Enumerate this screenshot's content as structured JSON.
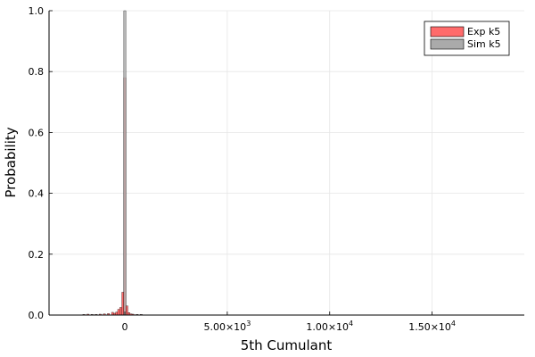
{
  "chart_data": {
    "type": "histogram",
    "title": "",
    "xlabel": "5th Cumulant",
    "ylabel": "Probability",
    "xlim": [
      -3700,
      19500
    ],
    "ylim": [
      0,
      1.0
    ],
    "grid": true,
    "legend_position": "top-right",
    "x_ticks": [
      {
        "value": 0,
        "label": "0"
      },
      {
        "value": 5000,
        "label": "5.00×10",
        "sup": "3"
      },
      {
        "value": 10000,
        "label": "1.00×10",
        "sup": "4"
      },
      {
        "value": 15000,
        "label": "1.50×10",
        "sup": "4"
      }
    ],
    "y_ticks": [
      {
        "value": 0.0,
        "label": "0.0"
      },
      {
        "value": 0.2,
        "label": "0.2"
      },
      {
        "value": 0.4,
        "label": "0.4"
      },
      {
        "value": 0.6,
        "label": "0.6"
      },
      {
        "value": 0.8,
        "label": "0.8"
      },
      {
        "value": 1.0,
        "label": "1.0"
      }
    ],
    "bin_width": 100,
    "series": [
      {
        "name": "Exp k5",
        "color": "#ff6b6b",
        "bins": [
          {
            "x": -3200,
            "y": 0.001
          },
          {
            "x": -2000,
            "y": 0.002
          },
          {
            "x": -1800,
            "y": 0.003
          },
          {
            "x": -1600,
            "y": 0.002
          },
          {
            "x": -1400,
            "y": 0.002
          },
          {
            "x": -1200,
            "y": 0.003
          },
          {
            "x": -1000,
            "y": 0.004
          },
          {
            "x": -800,
            "y": 0.005
          },
          {
            "x": -600,
            "y": 0.009
          },
          {
            "x": -500,
            "y": 0.006
          },
          {
            "x": -400,
            "y": 0.01
          },
          {
            "x": -300,
            "y": 0.019
          },
          {
            "x": -200,
            "y": 0.025
          },
          {
            "x": -100,
            "y": 0.075
          },
          {
            "x": 0,
            "y": 0.78
          },
          {
            "x": 100,
            "y": 0.03
          },
          {
            "x": 200,
            "y": 0.008
          },
          {
            "x": 300,
            "y": 0.004
          },
          {
            "x": 400,
            "y": 0.003
          },
          {
            "x": 600,
            "y": 0.002
          },
          {
            "x": 800,
            "y": 0.002
          },
          {
            "x": 1000,
            "y": 0.001
          },
          {
            "x": 1400,
            "y": 0.001
          },
          {
            "x": 2200,
            "y": 0.001
          }
        ]
      },
      {
        "name": "Sim k5",
        "color": "#aaaaaa",
        "bins": [
          {
            "x": 0,
            "y": 1.0
          }
        ]
      }
    ]
  }
}
